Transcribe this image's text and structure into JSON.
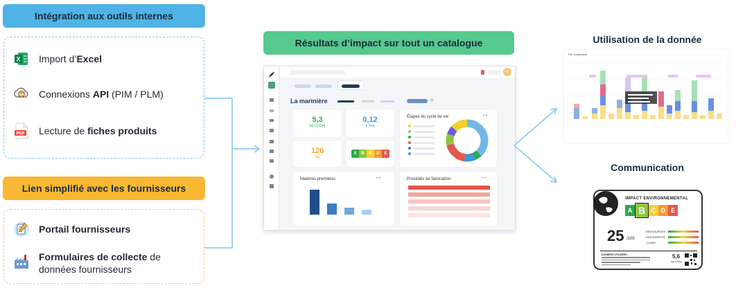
{
  "left": {
    "integration_title": "Intégration aux outils internes",
    "integration_items": [
      {
        "icon": "excel-icon",
        "pre": "Import d’",
        "bold": "Excel",
        "post": ""
      },
      {
        "icon": "api-cloud-icon",
        "pre": "Connexions ",
        "bold": "API",
        "post": " (PIM / PLM)"
      },
      {
        "icon": "pdf-icon",
        "pre": "Lecture de ",
        "bold": "fiches produits",
        "post": ""
      }
    ],
    "supplier_title": "Lien simplifié avec les fournisseurs",
    "supplier_items": [
      {
        "icon": "portal-icon",
        "bold": "Portail fournisseurs",
        "post": ""
      },
      {
        "icon": "factory-icon",
        "bold": "Formulaires de collecte",
        "post": " de",
        "line2": "données fournisseurs"
      }
    ]
  },
  "center": {
    "title": "Résultats d’impact sur tout un catalogue",
    "dashboard": {
      "avatar": "MS",
      "product_name": "La marinière",
      "kpi": [
        {
          "value": "5,3",
          "unit": "kg CO2eq"
        },
        {
          "value": "0,12",
          "unit": "g Peq"
        },
        {
          "value": "126",
          "unit": "mg"
        }
      ],
      "grades": [
        "A",
        "B",
        "C",
        "D",
        "E"
      ],
      "lifecycle_title": "Étapes du cycle de vie",
      "materials_title": "Matières premières",
      "process_title": "Procédés de fabrication"
    }
  },
  "right": {
    "usage_title": "Utilisation de la donnée",
    "usage_chart_label": "Par composant",
    "comm_title": "Communication",
    "label": {
      "header": "IMPACT ENVIRONNEMENTAL",
      "grades": [
        "A",
        "B",
        "C",
        "D",
        "E"
      ],
      "score": "25",
      "score_unit": "/100",
      "rows": [
        "RESSOURCES",
        "BIODIVERSITÉ",
        "CLIMAT"
      ],
      "footer_title": "DONNÉES UTILISÉES :",
      "side_value": "5,6",
      "side_unit": "kg CO2eq"
    }
  },
  "colors": {
    "blue_pill": "#4fb3e6",
    "green_pill": "#56c98d",
    "orange_pill": "#f8b833",
    "accent_green": "#2ea84f"
  }
}
